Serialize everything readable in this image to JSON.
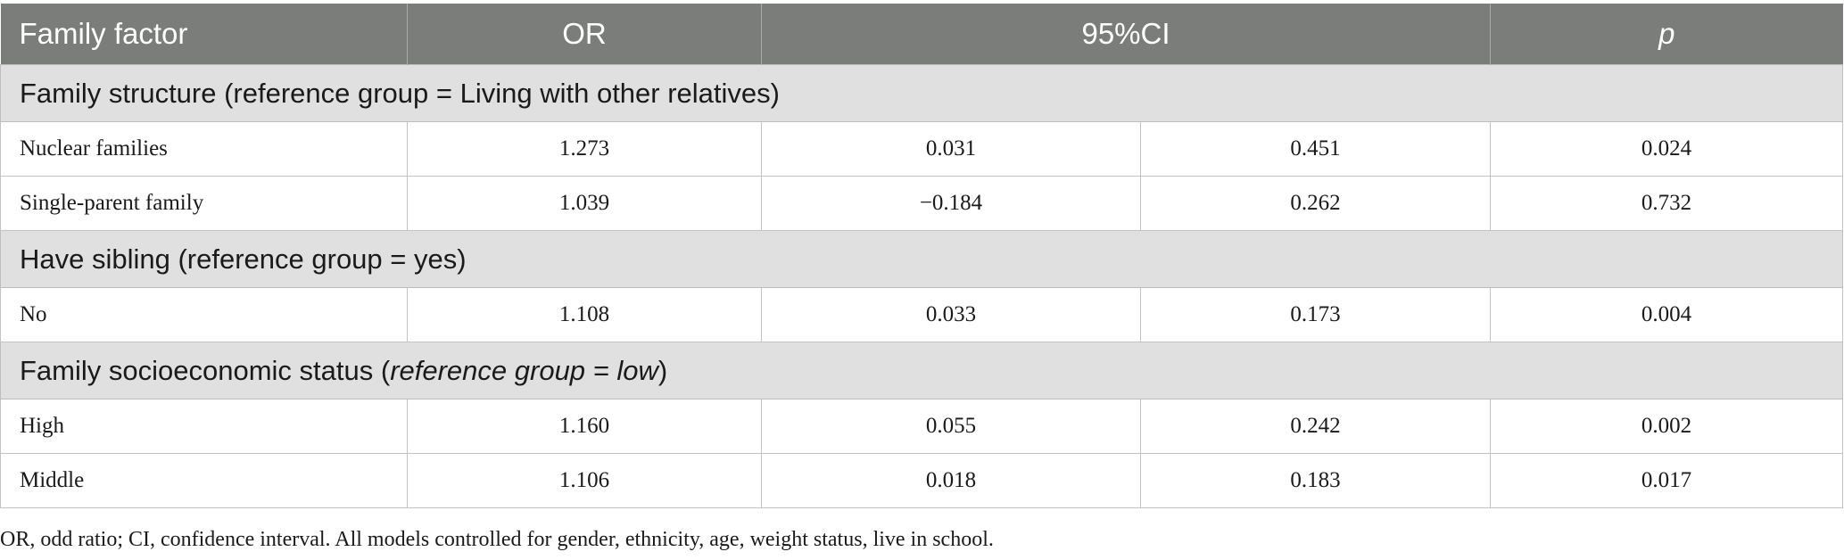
{
  "table": {
    "headers": {
      "family_factor": "Family factor",
      "or": "OR",
      "ci": "95%CI",
      "p": "p"
    },
    "groups": [
      {
        "title": "Family structure (reference group = Living with other relatives)",
        "rows": [
          {
            "factor": "Nuclear families",
            "or": "1.273",
            "ci_low": "0.031",
            "ci_high": "0.451",
            "p": "0.024"
          },
          {
            "factor": "Single-parent family",
            "or": "1.039",
            "ci_low": "−0.184",
            "ci_high": "0.262",
            "p": "0.732"
          }
        ]
      },
      {
        "title": "Have sibling (reference group = yes)",
        "rows": [
          {
            "factor": "No",
            "or": "1.108",
            "ci_low": "0.033",
            "ci_high": "0.173",
            "p": "0.004"
          }
        ]
      },
      {
        "title_prefix": "Family socioeconomic status (",
        "title_italic": "reference group = low",
        "title_suffix": ")",
        "rows": [
          {
            "factor": "High",
            "or": "1.160",
            "ci_low": "0.055",
            "ci_high": "0.242",
            "p": "0.002"
          },
          {
            "factor": "Middle",
            "or": "1.106",
            "ci_low": "0.018",
            "ci_high": "0.183",
            "p": "0.017"
          }
        ]
      }
    ]
  },
  "footnote": "OR, odd ratio; CI, confidence interval. All models controlled for gender, ethnicity, age, weight status, live in school."
}
